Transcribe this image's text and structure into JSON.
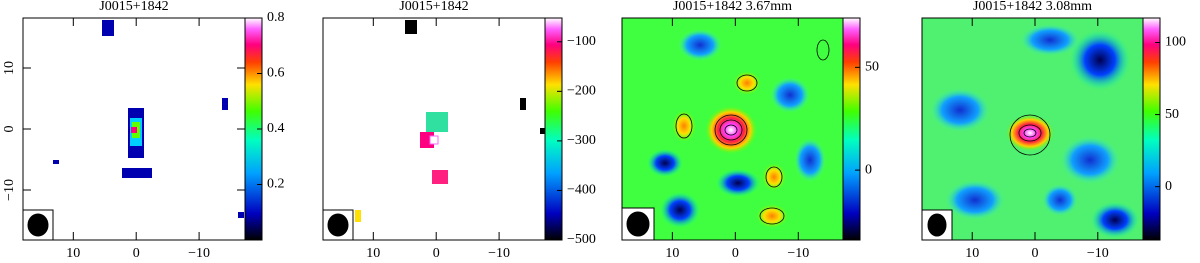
{
  "chart_data": [
    {
      "type": "heatmap",
      "title": "J0015+1842",
      "xlim": [
        18,
        -17.3
      ],
      "xticks": [
        10,
        0,
        {
          "value": -10,
          "label": "−10"
        }
      ],
      "ylim": [
        -18.2,
        18.2
      ],
      "yticks": [
        10,
        0,
        {
          "value": -10,
          "label": "−10"
        }
      ],
      "zlim": [
        0,
        0.8
      ],
      "zticks": [
        0.2,
        0.4,
        0.6,
        0.8
      ]
    },
    {
      "type": "heatmap",
      "title": "J0015+1842",
      "xlim": [
        18,
        -17.3
      ],
      "xticks": [
        10,
        0,
        {
          "value": -10,
          "label": "−10"
        }
      ],
      "zlim": [
        -500,
        -52
      ],
      "zticks": [
        {
          "value": -100,
          "label": "−100"
        },
        {
          "value": -200,
          "label": "−200"
        },
        {
          "value": -300,
          "label": "−300"
        },
        {
          "value": -400,
          "label": "−400"
        },
        {
          "value": -500,
          "label": "−500"
        }
      ]
    },
    {
      "type": "heatmap",
      "title": "J0015+1842 3.67mm",
      "xlim": [
        18,
        -17.1
      ],
      "xticks": [
        10,
        0,
        {
          "value": -10,
          "label": "−10"
        }
      ],
      "zlim": [
        -34,
        74
      ],
      "zticks": [
        0,
        50
      ]
    },
    {
      "type": "heatmap",
      "title": "J0015+1842 3.08mm",
      "xlim": [
        18,
        -17.2
      ],
      "xticks": [
        10,
        0,
        {
          "value": -10,
          "label": "−10"
        }
      ],
      "zlim": [
        -37,
        117
      ],
      "zticks": [
        0,
        50,
        100
      ]
    }
  ]
}
